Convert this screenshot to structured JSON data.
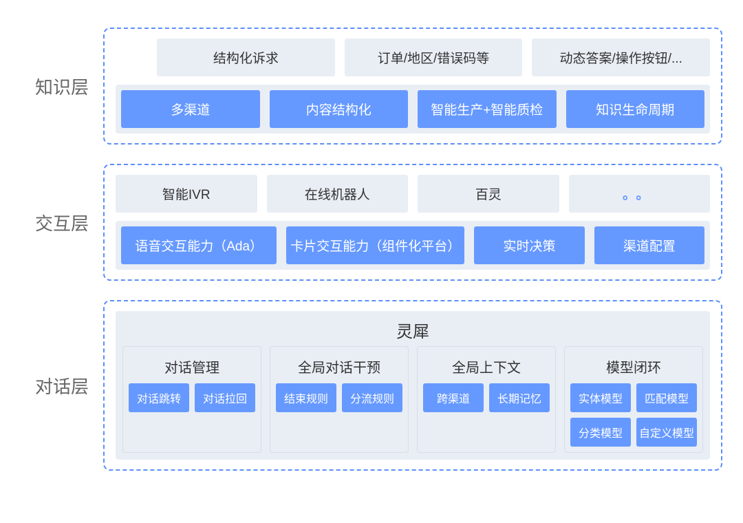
{
  "colors": {
    "dashed_border": "#5b8ff9",
    "gray_bg": "#e9eef5",
    "blue_bg": "#6699ff",
    "text_dark": "#333333",
    "text_gray": "#666666",
    "white": "#ffffff"
  },
  "layers": {
    "knowledge": {
      "label": "知识层",
      "top": [
        "结构化诉求",
        "订单/地区/错误码等",
        "动态答案/操作按钮/..."
      ],
      "bottom": [
        "多渠道",
        "内容结构化",
        "智能生产+智能质检",
        "知识生命周期"
      ]
    },
    "interaction": {
      "label": "交互层",
      "top": [
        "智能IVR",
        "在线机器人",
        "百灵",
        "。。"
      ],
      "bottom": [
        "语音交互能力（Ada）",
        "卡片交互能力（组件化平台）",
        "实时决策",
        "渠道配置"
      ]
    },
    "dialogue": {
      "label": "对话层",
      "title": "灵犀",
      "groups": [
        {
          "title": "对话管理",
          "items": [
            "对话跳转",
            "对话拉回"
          ]
        },
        {
          "title": "全局对话干预",
          "items": [
            "结束规则",
            "分流规则"
          ]
        },
        {
          "title": "全局上下文",
          "items": [
            "跨渠道",
            "长期记忆"
          ]
        },
        {
          "title": "模型闭环",
          "items": [
            "实体模型",
            "匹配模型",
            "分类模型",
            "自定义模型"
          ]
        }
      ]
    }
  }
}
